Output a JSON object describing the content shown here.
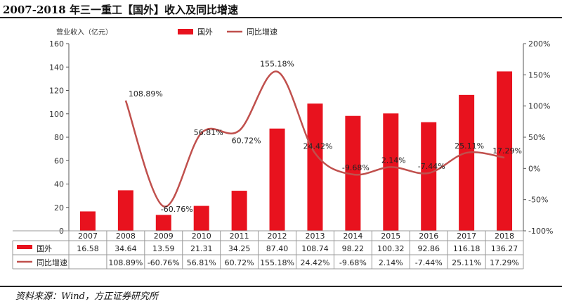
{
  "header": {
    "title": "2007-2018 年三一重工【国外】收入及同比增速"
  },
  "footer": {
    "source": "资料来源：Wind，方正证券研究所"
  },
  "colors": {
    "bar": "#e8121e",
    "line": "#c0504d",
    "axis": "#555555",
    "grid": "#bbbbbb"
  },
  "chart_data": {
    "type": "bar",
    "categories": [
      "2007",
      "2008",
      "2009",
      "2010",
      "2011",
      "2012",
      "2013",
      "2014",
      "2015",
      "2016",
      "2017",
      "2018"
    ],
    "ylabel": "营业收入（亿元）",
    "ylim": [
      0,
      160
    ],
    "y_ticks": [
      0,
      20,
      40,
      60,
      80,
      100,
      120,
      140,
      160
    ],
    "y2lim": [
      -100,
      200
    ],
    "y2_ticks": [
      "-100%",
      "-50%",
      "0%",
      "50%",
      "100%",
      "150%",
      "200%"
    ],
    "y2_tick_values": [
      -100,
      -50,
      0,
      50,
      100,
      150,
      200
    ],
    "legend_position": "top",
    "series": [
      {
        "name": "国外",
        "type": "bar",
        "axis": "left",
        "values": [
          16.58,
          34.64,
          13.59,
          21.31,
          34.25,
          87.4,
          108.74,
          98.22,
          100.32,
          92.86,
          116.18,
          136.27
        ],
        "table_labels": [
          "16.58",
          "34.64",
          "13.59",
          "21.31",
          "34.25",
          "87.40",
          "108.74",
          "98.22",
          "100.32",
          "92.86",
          "116.18",
          "136.27"
        ]
      },
      {
        "name": "同比增速",
        "type": "line",
        "axis": "right",
        "values": [
          null,
          108.89,
          -60.76,
          56.81,
          60.72,
          155.18,
          24.42,
          -9.68,
          2.14,
          -7.44,
          25.11,
          17.29
        ],
        "point_labels": [
          "",
          "108.89%",
          "-60.76%",
          "56.81%",
          "60.72%",
          "155.18%",
          "24.42%",
          "-9.68%",
          "2.14%",
          "-7.44%",
          "25.11%",
          "17.29%"
        ],
        "table_labels": [
          "",
          "108.89%",
          "-60.76%",
          "56.81%",
          "60.72%",
          "155.18%",
          "24.42%",
          "-9.68%",
          "2.14%",
          "-7.44%",
          "25.11%",
          "17.29%"
        ]
      }
    ]
  }
}
